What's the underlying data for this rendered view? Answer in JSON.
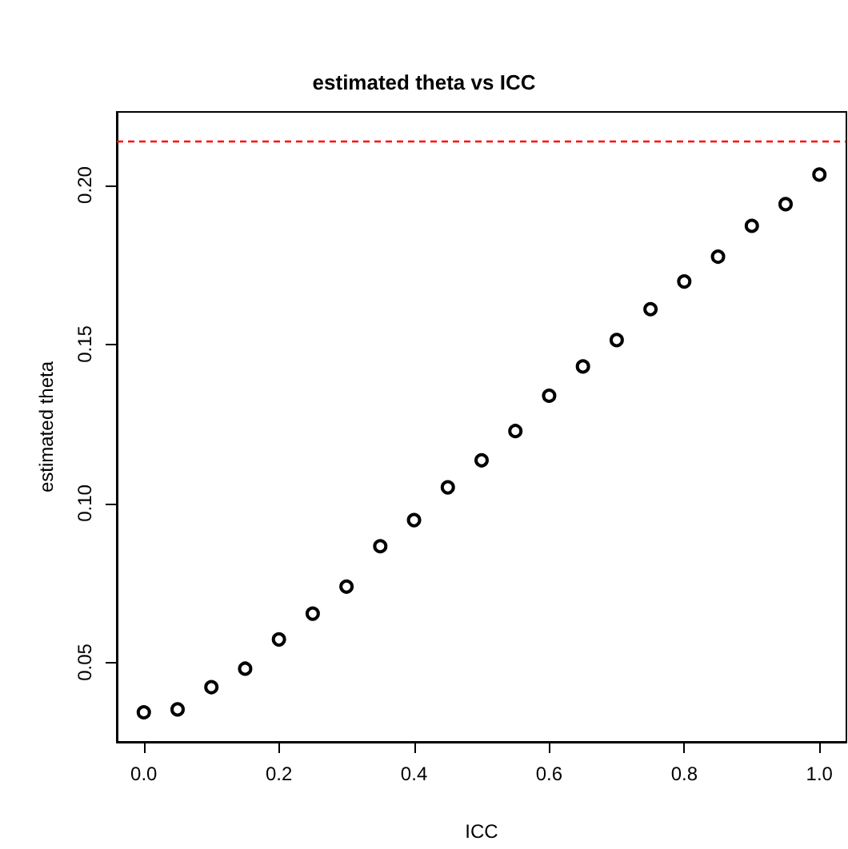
{
  "chart_data": {
    "type": "scatter",
    "title": "estimated theta vs ICC",
    "xlabel": "ICC",
    "ylabel": "estimated theta",
    "x": [
      0,
      0.05,
      0.1,
      0.15,
      0.2,
      0.25,
      0.3,
      0.35,
      0.4,
      0.45,
      0.5,
      0.55,
      0.6,
      0.65,
      0.7,
      0.75,
      0.8,
      0.85,
      0.9,
      0.95,
      1.0
    ],
    "series": [
      {
        "color": "#000000",
        "values": [
          0.0343,
          0.0352,
          0.0422,
          0.048,
          0.0572,
          0.0653,
          0.0738,
          0.0865,
          0.0947,
          0.105,
          0.1135,
          0.1227,
          0.1338,
          0.143,
          0.1513,
          0.161,
          0.1697,
          0.1775,
          0.1872,
          0.194,
          0.2033
        ]
      }
    ],
    "xlim": [
      -0.04,
      1.04
    ],
    "xticks": [
      {
        "value": 0,
        "label": "0.0"
      },
      {
        "value": 0.2,
        "label": "0.2"
      },
      {
        "value": 0.4,
        "label": "0.4"
      },
      {
        "value": 0.6,
        "label": "0.6"
      },
      {
        "value": 0.8,
        "label": "0.8"
      },
      {
        "value": 1.0,
        "label": "1.0"
      }
    ],
    "ylim": [
      0.025,
      0.223
    ],
    "yticks": [
      {
        "value": 0.05,
        "label": "0.05"
      },
      {
        "value": 0.1,
        "label": "0.10"
      },
      {
        "value": 0.15,
        "label": "0.15"
      },
      {
        "value": 0.2,
        "label": "0.20"
      }
    ],
    "ref_lines": [
      {
        "axis": "y",
        "value": 0.2137,
        "color": "#ff0000",
        "line_style": "dashed"
      }
    ],
    "marker": "circle",
    "grid": false
  }
}
